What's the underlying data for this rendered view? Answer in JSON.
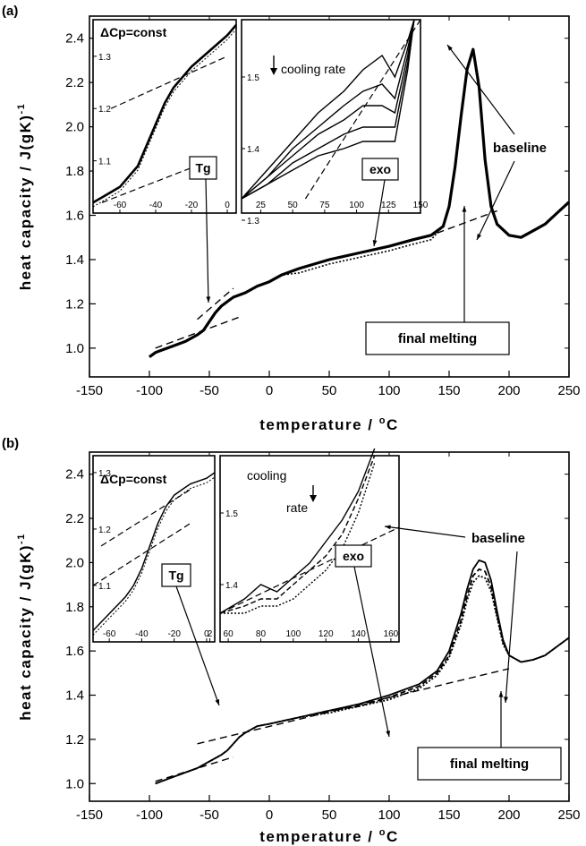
{
  "chart_data": [
    {
      "panel_label": "(a)",
      "type": "line",
      "xlabel_main": "temperature / ",
      "xlabel_sup": "o",
      "xlabel_unit": "C",
      "ylabel": "heat capacity / J(gK)",
      "ylabel_sup": "-1",
      "xlim": [
        -150,
        250
      ],
      "ylim": [
        0.87,
        2.5
      ],
      "x_ticks": [
        "-150",
        "-100",
        "-50",
        "0",
        "50",
        "100",
        "150",
        "200",
        "250"
      ],
      "y_ticks": [
        "1.0",
        "1.2",
        "1.4",
        "1.6",
        "1.8",
        "2.0",
        "2.2",
        "2.4"
      ],
      "series": [
        {
          "x": [
            -100,
            -95,
            -90,
            -80,
            -70,
            -60,
            -55,
            -50,
            -45,
            -40,
            -35,
            -30,
            -25,
            -20,
            -10,
            0,
            10,
            25,
            50,
            75,
            100,
            120,
            135,
            145,
            150,
            155,
            160,
            165,
            170,
            175,
            180,
            185,
            190,
            200,
            210,
            220,
            230,
            240,
            250
          ],
          "y": [
            0.96,
            0.98,
            0.99,
            1.01,
            1.03,
            1.06,
            1.08,
            1.12,
            1.16,
            1.19,
            1.21,
            1.23,
            1.24,
            1.25,
            1.28,
            1.3,
            1.33,
            1.36,
            1.4,
            1.43,
            1.46,
            1.49,
            1.51,
            1.55,
            1.64,
            1.82,
            2.05,
            2.26,
            2.35,
            2.18,
            1.85,
            1.64,
            1.56,
            1.51,
            1.5,
            1.53,
            1.56,
            1.61,
            1.66
          ]
        }
      ],
      "baselines": [
        {
          "x": [
            -95,
            -25
          ],
          "y": [
            1.0,
            1.14
          ]
        },
        {
          "x": [
            -60,
            -30
          ],
          "y": [
            1.13,
            1.27
          ]
        },
        {
          "x": [
            140,
            190
          ],
          "y": [
            1.52,
            1.62
          ]
        }
      ],
      "annotations": [
        "Tg",
        "exo",
        "baseline",
        "final melting"
      ],
      "inset_left": {
        "label": "ΔCp=const",
        "annotation": "Tg",
        "xlim": [
          -75,
          5
        ],
        "ylim": [
          1.0,
          1.37
        ],
        "x_ticks": [
          "-60",
          "-40",
          "-20",
          "0"
        ],
        "y_ticks": [
          "1.1",
          "1.2",
          "1.3"
        ],
        "curve": {
          "x": [
            -75,
            -70,
            -60,
            -50,
            -45,
            -40,
            -35,
            -30,
            -25,
            -20,
            -10,
            0,
            5
          ],
          "y": [
            1.02,
            1.03,
            1.05,
            1.09,
            1.13,
            1.17,
            1.21,
            1.24,
            1.26,
            1.28,
            1.31,
            1.34,
            1.36
          ]
        },
        "baselines": [
          {
            "x": [
              -70,
              -10
            ],
            "y": [
              1.02,
              1.1
            ]
          },
          {
            "x": [
              -65,
              0
            ],
            "y": [
              1.2,
              1.3
            ]
          }
        ]
      },
      "inset_right": {
        "label": "cooling rate",
        "annotation": "exo",
        "xlim": [
          10,
          150
        ],
        "ylim": [
          1.31,
          1.58
        ],
        "x_ticks": [
          "25",
          "50",
          "75",
          "100",
          "125",
          "150"
        ],
        "y_ticks": [
          "1.3",
          "1.4",
          "1.5"
        ],
        "curves": [
          {
            "x": [
              10,
              30,
              50,
              70,
              90,
              105,
              120,
              130,
              140,
              145
            ],
            "y": [
              1.33,
              1.37,
              1.41,
              1.45,
              1.48,
              1.51,
              1.53,
              1.5,
              1.55,
              1.58
            ]
          },
          {
            "x": [
              10,
              30,
              50,
              70,
              90,
              105,
              120,
              130,
              140,
              145
            ],
            "y": [
              1.33,
              1.36,
              1.4,
              1.43,
              1.46,
              1.48,
              1.49,
              1.47,
              1.54,
              1.58
            ]
          },
          {
            "x": [
              10,
              30,
              50,
              70,
              90,
              105,
              120,
              130,
              140,
              145
            ],
            "y": [
              1.33,
              1.36,
              1.39,
              1.42,
              1.44,
              1.46,
              1.46,
              1.45,
              1.53,
              1.58
            ]
          },
          {
            "x": [
              10,
              30,
              50,
              70,
              90,
              105,
              120,
              130,
              140,
              145
            ],
            "y": [
              1.33,
              1.35,
              1.38,
              1.4,
              1.42,
              1.43,
              1.43,
              1.43,
              1.52,
              1.58
            ]
          },
          {
            "x": [
              10,
              30,
              50,
              70,
              90,
              105,
              120,
              130,
              140,
              145
            ],
            "y": [
              1.33,
              1.35,
              1.37,
              1.39,
              1.4,
              1.41,
              1.41,
              1.41,
              1.51,
              1.58
            ]
          }
        ],
        "baseline": {
          "x": [
            60,
            150
          ],
          "y": [
            1.33,
            1.58
          ]
        }
      }
    },
    {
      "panel_label": "(b)",
      "type": "line",
      "xlabel_main": "temperature / ",
      "xlabel_sup": "o",
      "xlabel_unit": "C",
      "ylabel": "heat capacity / J(gK)",
      "ylabel_sup": "-1",
      "xlim": [
        -150,
        250
      ],
      "ylim": [
        0.92,
        2.5
      ],
      "x_ticks": [
        "-150",
        "-100",
        "-50",
        "0",
        "50",
        "100",
        "150",
        "200",
        "250"
      ],
      "y_ticks": [
        "1.0",
        "1.2",
        "1.4",
        "1.6",
        "1.8",
        "2.0",
        "2.2",
        "2.4"
      ],
      "series": [
        {
          "x": [
            -95,
            -80,
            -70,
            -60,
            -50,
            -40,
            -35,
            -30,
            -25,
            -20,
            -10,
            0,
            25,
            50,
            75,
            100,
            125,
            140,
            150,
            160,
            165,
            170,
            175,
            180,
            185,
            190,
            195,
            200,
            210,
            220,
            230,
            240,
            250
          ],
          "y": [
            1.0,
            1.03,
            1.05,
            1.07,
            1.1,
            1.13,
            1.15,
            1.18,
            1.21,
            1.23,
            1.26,
            1.27,
            1.3,
            1.33,
            1.36,
            1.4,
            1.45,
            1.51,
            1.6,
            1.77,
            1.88,
            1.97,
            2.01,
            2.0,
            1.92,
            1.78,
            1.65,
            1.58,
            1.55,
            1.56,
            1.58,
            1.62,
            1.66
          ]
        },
        {
          "x": [
            -95,
            -80,
            -70,
            -60,
            -50,
            -40,
            -35,
            -30,
            -25,
            -20,
            -10,
            0,
            25,
            50,
            75,
            100,
            125,
            140,
            150,
            160,
            165,
            170,
            175,
            180,
            185,
            190,
            195,
            200,
            210,
            220,
            230,
            240,
            250
          ],
          "y": [
            1.0,
            1.03,
            1.05,
            1.07,
            1.1,
            1.13,
            1.15,
            1.18,
            1.21,
            1.23,
            1.26,
            1.27,
            1.3,
            1.33,
            1.35,
            1.39,
            1.44,
            1.5,
            1.58,
            1.74,
            1.85,
            1.94,
            1.97,
            1.96,
            1.89,
            1.76,
            1.64,
            1.58,
            1.55,
            1.56,
            1.58,
            1.62,
            1.66
          ]
        },
        {
          "x": [
            -95,
            -80,
            -70,
            -60,
            -50,
            -40,
            -35,
            -30,
            -25,
            -20,
            -10,
            0,
            25,
            50,
            75,
            100,
            125,
            140,
            150,
            160,
            165,
            170,
            175,
            180,
            185,
            190,
            195,
            200,
            210,
            220,
            230,
            240,
            250
          ],
          "y": [
            1.0,
            1.03,
            1.05,
            1.07,
            1.1,
            1.13,
            1.15,
            1.18,
            1.21,
            1.23,
            1.26,
            1.27,
            1.3,
            1.32,
            1.35,
            1.38,
            1.43,
            1.49,
            1.57,
            1.72,
            1.83,
            1.91,
            1.94,
            1.93,
            1.87,
            1.75,
            1.63,
            1.58,
            1.55,
            1.56,
            1.58,
            1.62,
            1.66
          ]
        }
      ],
      "baselines": [
        {
          "x": [
            -95,
            -30
          ],
          "y": [
            1.01,
            1.12
          ]
        },
        {
          "x": [
            -60,
            200
          ],
          "y": [
            1.18,
            1.52
          ]
        }
      ],
      "annotations": [
        "Tg",
        "exo",
        "baseline",
        "final melting"
      ],
      "inset_left": {
        "label": "ΔCp=const",
        "annotation": "Tg",
        "xlim": [
          -70,
          5
        ],
        "ylim": [
          1.0,
          1.33
        ],
        "x_ticks": [
          "-60",
          "-40",
          "-20",
          "0",
          "2"
        ],
        "y_ticks": [
          "1.1",
          "1.2",
          "1.3"
        ],
        "curve": {
          "x": [
            -70,
            -60,
            -50,
            -45,
            -40,
            -35,
            -30,
            -25,
            -20,
            -15,
            -10,
            0,
            5
          ],
          "y": [
            1.02,
            1.05,
            1.08,
            1.1,
            1.13,
            1.17,
            1.21,
            1.24,
            1.26,
            1.27,
            1.28,
            1.29,
            1.3
          ]
        },
        "baselines": [
          {
            "x": [
              -70,
              -10
            ],
            "y": [
              1.1,
              1.21
            ]
          },
          {
            "x": [
              -65,
              -10
            ],
            "y": [
              1.17,
              1.27
            ]
          }
        ]
      },
      "inset_right": {
        "label_line1": "cooling",
        "label_line2": "rate",
        "annotation": "exo",
        "xlim": [
          55,
          165
        ],
        "ylim": [
          1.32,
          1.58
        ],
        "x_ticks": [
          "60",
          "80",
          "100",
          "120",
          "140",
          "160"
        ],
        "y_ticks": [
          "1.4",
          "1.5"
        ],
        "curves": [
          {
            "x": [
              55,
              70,
              80,
              90,
              100,
              110,
              120,
              130,
              140,
              150
            ],
            "y": [
              1.36,
              1.38,
              1.4,
              1.39,
              1.41,
              1.43,
              1.46,
              1.49,
              1.53,
              1.59
            ]
          },
          {
            "x": [
              55,
              70,
              80,
              90,
              100,
              110,
              120,
              130,
              140,
              150
            ],
            "y": [
              1.36,
              1.37,
              1.38,
              1.38,
              1.4,
              1.42,
              1.44,
              1.47,
              1.52,
              1.58
            ]
          },
          {
            "x": [
              55,
              70,
              80,
              90,
              100,
              110,
              120,
              130,
              140,
              150
            ],
            "y": [
              1.36,
              1.36,
              1.37,
              1.37,
              1.38,
              1.4,
              1.42,
              1.45,
              1.5,
              1.57
            ]
          }
        ],
        "baseline": {
          "x": [
            55,
            165
          ],
          "y": [
            1.36,
            1.48
          ]
        }
      }
    }
  ]
}
